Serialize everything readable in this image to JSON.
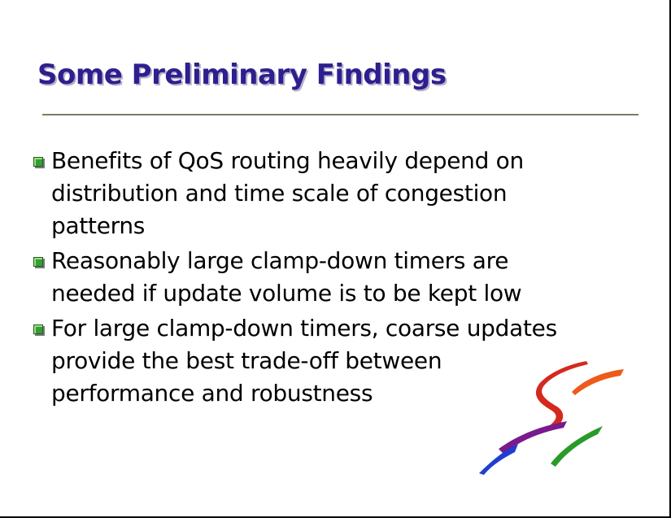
{
  "slide": {
    "title": "Some Preliminary Findings",
    "bullets": [
      "Benefits of QoS routing heavily depend on distribution and time scale of congestion patterns",
      "Reasonably large clamp-down timers are needed if update volume is to be kept low",
      "For large clamp-down timers, coarse updates provide the best trade-off between performance and robustness"
    ],
    "bullet_marker_color": "#33a033",
    "title_color": "#2e1f8f"
  },
  "logo": {
    "icon": "brush-stroke-logo-icon",
    "colors": [
      "#d42a1e",
      "#ee5a1a",
      "#7a1a8c",
      "#1f3fd0",
      "#2a9a2a"
    ]
  }
}
